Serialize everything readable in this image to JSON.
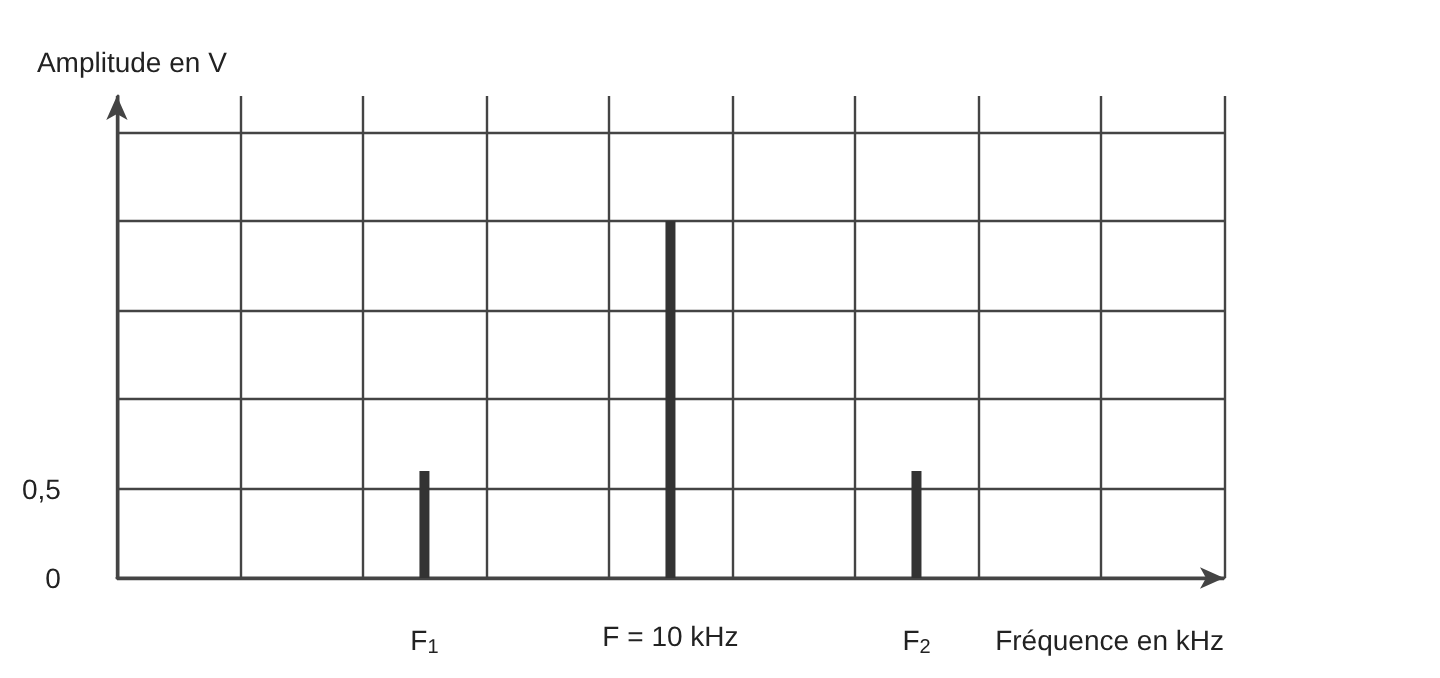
{
  "chart_data": {
    "type": "bar",
    "ylabel": "Amplitude en V",
    "xlabel": "Fréquence en kHz",
    "categories": [
      null,
      null,
      "F$_{1}$",
      null,
      "F = 10 kHz",
      null,
      "F$_{2}$",
      null,
      null
    ],
    "values": [
      null,
      null,
      0.6,
      null,
      2,
      null,
      0.6,
      null,
      null
    ],
    "color": "#333333",
    "ylim": [
      0,
      2.7
    ],
    "yticks": [
      0,
      {
        "value": 0.5,
        "label": "0,5"
      },
      {
        "value": 1,
        "label": null
      },
      {
        "value": 1.5,
        "label": null
      },
      {
        "value": 2,
        "label": null
      },
      {
        "value": 2.5,
        "label": null
      }
    ],
    "grid": true
  }
}
